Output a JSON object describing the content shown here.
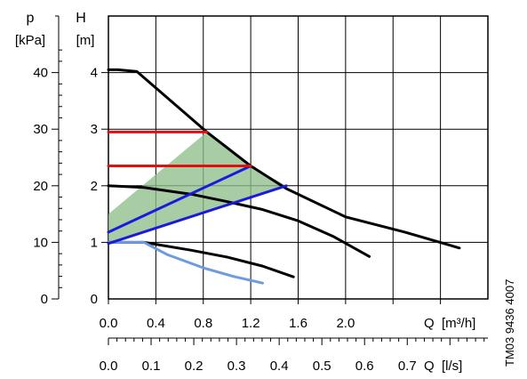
{
  "figure_id": "TM03 9436 4007",
  "chart_data": {
    "type": "line",
    "title": "",
    "axes": {
      "h": {
        "label": "H",
        "unit": "[m]",
        "ylim": [
          0,
          5
        ],
        "ticks": [
          "0",
          "1",
          "2",
          "3",
          "4"
        ]
      },
      "p": {
        "label": "p",
        "unit": "[kPa]",
        "ylim": [
          0,
          50
        ],
        "ticks": [
          "0",
          "10",
          "20",
          "30",
          "40"
        ]
      },
      "q_m3h": {
        "label": "Q",
        "unit": "[m³/h]",
        "xlim": [
          0,
          3.2
        ],
        "ticks": [
          "0.0",
          "0.4",
          "0.8",
          "1.2",
          "1.6",
          "2.0"
        ]
      },
      "q_ls": {
        "label": "Q",
        "unit": "[l/s]",
        "xlim": [
          0,
          0.8889
        ],
        "ticks": [
          "0.0",
          "0.1",
          "0.2",
          "0.3",
          "0.4",
          "0.5",
          "0.6",
          "0.7"
        ]
      }
    },
    "grid": true,
    "colors": {
      "max_curve": "#000000",
      "proportional": "#1a1adf",
      "constant": "#e01010",
      "area": "#8fbf8a",
      "min_curve": "#6d9be0"
    },
    "area_region": [
      [
        0.0,
        1.5
      ],
      [
        0.83,
        2.95
      ],
      [
        1.2,
        2.35
      ],
      [
        1.5,
        2.0
      ],
      [
        0.0,
        1.0
      ]
    ],
    "series": [
      {
        "style": "black",
        "x": [
          0.0,
          0.08,
          0.24,
          0.83,
          1.2,
          1.5,
          2.0,
          2.5,
          2.96
        ],
        "y": [
          4.05,
          4.05,
          4.02,
          2.95,
          2.35,
          1.95,
          1.45,
          1.18,
          0.9
        ]
      },
      {
        "style": "black",
        "x": [
          0.0,
          0.3,
          0.7,
          1.0,
          1.3,
          1.6,
          1.9,
          2.2
        ],
        "y": [
          2.0,
          1.97,
          1.85,
          1.72,
          1.58,
          1.38,
          1.1,
          0.75
        ]
      },
      {
        "style": "black",
        "x": [
          0.0,
          0.3,
          0.7,
          1.0,
          1.3,
          1.56
        ],
        "y": [
          1.0,
          1.0,
          0.86,
          0.74,
          0.58,
          0.39
        ]
      },
      {
        "style": "lightblue",
        "x": [
          0.0,
          0.3,
          0.5,
          0.8,
          1.05,
          1.3
        ],
        "y": [
          1.0,
          1.0,
          0.78,
          0.55,
          0.4,
          0.28
        ]
      },
      {
        "style": "blue",
        "x": [
          0.0,
          1.2
        ],
        "y": [
          1.18,
          2.35
        ]
      },
      {
        "style": "blue",
        "x": [
          0.0,
          1.5
        ],
        "y": [
          0.98,
          2.0
        ]
      },
      {
        "style": "red",
        "x": [
          0.0,
          0.83
        ],
        "y": [
          2.95,
          2.95
        ]
      },
      {
        "style": "red",
        "x": [
          0.0,
          1.2
        ],
        "y": [
          2.35,
          2.35
        ]
      }
    ]
  }
}
